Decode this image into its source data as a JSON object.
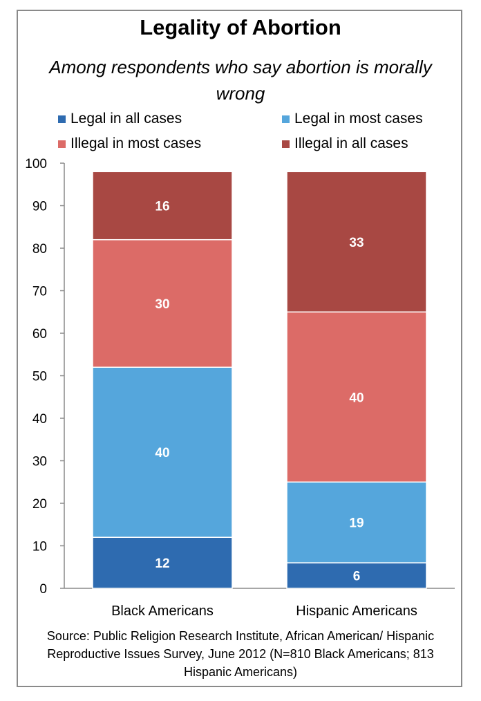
{
  "chart_data": {
    "type": "bar",
    "stacked": true,
    "title": "Legality of Abortion",
    "subtitle": "Among respondents who say abortion is morally wrong",
    "categories": [
      "Black Americans",
      "Hispanic Americans"
    ],
    "series": [
      {
        "name": "Legal in all cases",
        "values": [
          12,
          6
        ],
        "color": "#2e6bb0"
      },
      {
        "name": "Legal in most cases",
        "values": [
          40,
          19
        ],
        "color": "#55a6dc"
      },
      {
        "name": "Illegal in most cases",
        "values": [
          30,
          40
        ],
        "color": "#dc6b67"
      },
      {
        "name": "Illegal in all cases",
        "values": [
          16,
          33
        ],
        "color": "#a84843"
      }
    ],
    "ylim": [
      0,
      100
    ],
    "yticks": [
      0,
      10,
      20,
      30,
      40,
      50,
      60,
      70,
      80,
      90,
      100
    ],
    "grid": false,
    "legend_position": "top",
    "source": "Source: Public Religion Research Institute, African American/ Hispanic Reproductive Issues Survey, June 2012 (N=810 Black Americans; 813 Hispanic Americans)"
  }
}
